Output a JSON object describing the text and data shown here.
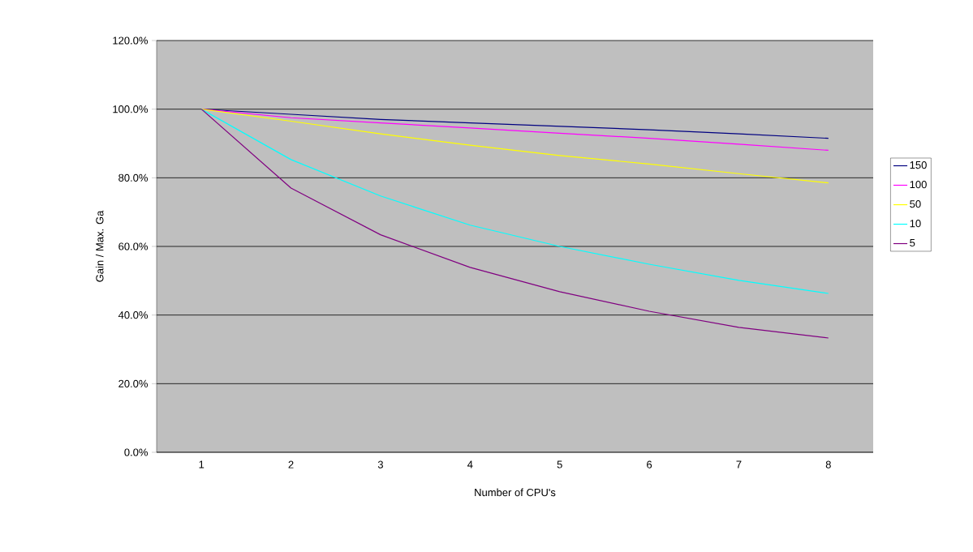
{
  "chart_data": {
    "type": "line",
    "xlabel": "Number of CPU's",
    "ylabel": "Gain / Max. Ga",
    "categories": [
      "1",
      "2",
      "3",
      "4",
      "5",
      "6",
      "7",
      "8"
    ],
    "series": [
      {
        "name": "150",
        "color": "#000080",
        "values": [
          100,
          98.5,
          97,
          96,
          95,
          94,
          92.8,
          91.5
        ]
      },
      {
        "name": "100",
        "color": "#ff00ff",
        "values": [
          100,
          97.5,
          96,
          94.5,
          93,
          91.5,
          89.8,
          88
        ]
      },
      {
        "name": "50",
        "color": "#ffff00",
        "values": [
          100,
          96.5,
          92.8,
          89.5,
          86.5,
          84,
          81.2,
          78.5
        ]
      },
      {
        "name": "10",
        "color": "#00ffff",
        "values": [
          100,
          85.3,
          74.7,
          66.2,
          60,
          54.8,
          50.1,
          46.3
        ]
      },
      {
        "name": "5",
        "color": "#800080",
        "values": [
          100,
          77,
          63.4,
          53.9,
          46.8,
          41.1,
          36.4,
          33.3
        ]
      }
    ],
    "ylim": [
      0,
      120
    ],
    "yticks": [
      {
        "value": 0,
        "label": "0.0%"
      },
      {
        "value": 20,
        "label": "20.0%"
      },
      {
        "value": 40,
        "label": "40.0%"
      },
      {
        "value": 60,
        "label": "60.0%"
      },
      {
        "value": 80,
        "label": "80.0%"
      },
      {
        "value": 100,
        "label": "100.0%"
      },
      {
        "value": 120,
        "label": "120.0%"
      }
    ],
    "grid": "y",
    "legend": "right",
    "marker": "none",
    "line_style": "solid"
  }
}
